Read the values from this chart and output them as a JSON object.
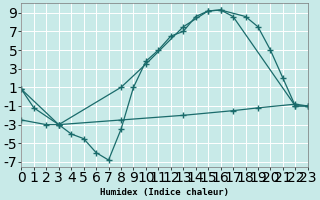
{
  "xlabel": "Humidex (Indice chaleur)",
  "bg_color": "#c8eae8",
  "grid_color": "#ffffff",
  "line_color": "#1a6b6b",
  "xlim": [
    0,
    23
  ],
  "ylim": [
    -7.5,
    10
  ],
  "yticks": [
    -7,
    -5,
    -3,
    -1,
    1,
    3,
    5,
    7,
    9
  ],
  "xticks": [
    0,
    1,
    2,
    3,
    4,
    5,
    6,
    7,
    8,
    9,
    10,
    11,
    12,
    13,
    14,
    15,
    16,
    17,
    18,
    19,
    20,
    21,
    22,
    23
  ],
  "line1_x": [
    0,
    1,
    3,
    4,
    5,
    6,
    7,
    8,
    9,
    10,
    11,
    12,
    13,
    14,
    15,
    16,
    17,
    22,
    23
  ],
  "line1_y": [
    0.8,
    -1.2,
    -3,
    -4,
    -4.5,
    -6,
    -6.8,
    -3.5,
    1,
    3.8,
    5,
    6.5,
    7,
    8.6,
    9.2,
    9.3,
    8.6,
    -1,
    -1
  ],
  "line2_x": [
    0,
    3,
    8,
    10,
    13,
    15,
    16,
    18,
    19,
    20,
    21,
    22,
    23
  ],
  "line2_y": [
    0.8,
    -3,
    1,
    3.5,
    7.5,
    9.2,
    9.3,
    8.6,
    7.5,
    5,
    2,
    -1,
    -1
  ],
  "line3_x": [
    0,
    2,
    3,
    8,
    13,
    17,
    19,
    22,
    23
  ],
  "line3_y": [
    -2.5,
    -3,
    -3,
    -2.5,
    -2,
    -1.5,
    -1.2,
    -0.8,
    -1
  ]
}
